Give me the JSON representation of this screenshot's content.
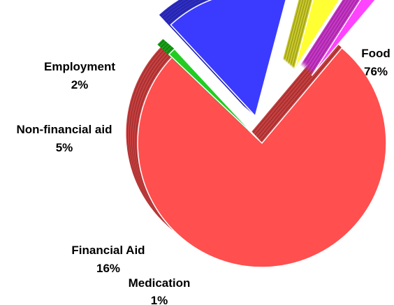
{
  "chart_data": {
    "type": "pie",
    "style": "3d-exploded",
    "title": "",
    "slices": [
      {
        "label": "Food",
        "value": 76,
        "pct": "76%",
        "color": "#ff4f4f"
      },
      {
        "label": "Medication",
        "value": 1,
        "pct": "1%",
        "color": "#22cc22"
      },
      {
        "label": "Financial Aid",
        "value": 16,
        "pct": "16%",
        "color": "#3b3bff"
      },
      {
        "label": "Non-financial aid",
        "value": 5,
        "pct": "5%",
        "color": "#ffff33"
      },
      {
        "label": "Employment",
        "value": 2,
        "pct": "2%",
        "color": "#ff44ff"
      }
    ],
    "legend": "none"
  }
}
